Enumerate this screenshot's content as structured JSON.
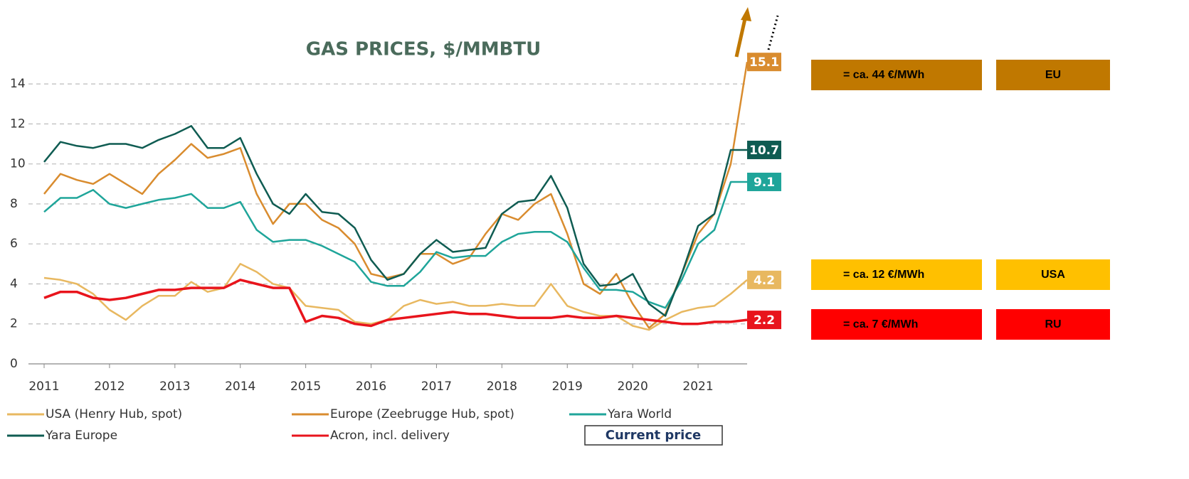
{
  "chart_data": {
    "type": "line",
    "title": "GAS PRICES, $/MMBTU",
    "x": [
      2011,
      2011.25,
      2011.5,
      2011.75,
      2012,
      2012.25,
      2012.5,
      2012.75,
      2013,
      2013.25,
      2013.5,
      2013.75,
      2014,
      2014.25,
      2014.5,
      2014.75,
      2015,
      2015.25,
      2015.5,
      2015.75,
      2016,
      2016.25,
      2016.5,
      2016.75,
      2017,
      2017.25,
      2017.5,
      2017.75,
      2018,
      2018.25,
      2018.5,
      2018.75,
      2019,
      2019.25,
      2019.5,
      2019.75,
      2020,
      2020.25,
      2020.5,
      2020.75,
      2021,
      2021.25,
      2021.5,
      2021.75
    ],
    "xlim": [
      2011,
      2021.75
    ],
    "xticks": [
      2011,
      2012,
      2013,
      2014,
      2015,
      2016,
      2017,
      2018,
      2019,
      2020,
      2021
    ],
    "ylim": [
      0,
      15
    ],
    "yticks": [
      0,
      2,
      4,
      6,
      8,
      10,
      12,
      14
    ],
    "grid": true,
    "series": [
      {
        "name": "USA (Henry Hub, spot)",
        "color": "#e8b860",
        "end_label": 4.2,
        "values": [
          4.3,
          4.2,
          4.0,
          3.5,
          2.7,
          2.2,
          2.9,
          3.4,
          3.4,
          4.1,
          3.6,
          3.8,
          5.0,
          4.6,
          4.0,
          3.8,
          2.9,
          2.8,
          2.7,
          2.1,
          2.0,
          2.2,
          2.9,
          3.2,
          3.0,
          3.1,
          2.9,
          2.9,
          3.0,
          2.9,
          2.9,
          4.0,
          2.9,
          2.6,
          2.4,
          2.4,
          1.9,
          1.7,
          2.2,
          2.6,
          2.8,
          2.9,
          3.5,
          4.2
        ]
      },
      {
        "name": "Europe (Zeebrugge Hub, spot)",
        "color": "#d98c2f",
        "end_label": 15.1,
        "values": [
          8.5,
          9.5,
          9.2,
          9.0,
          9.5,
          9.0,
          8.5,
          9.5,
          10.2,
          11.0,
          10.3,
          10.5,
          10.8,
          8.5,
          7.0,
          8.0,
          8.0,
          7.2,
          6.8,
          6.0,
          4.5,
          4.3,
          4.5,
          5.5,
          5.5,
          5.0,
          5.3,
          6.5,
          7.5,
          7.2,
          8.0,
          8.5,
          6.5,
          4.0,
          3.5,
          4.5,
          3.0,
          1.8,
          2.5,
          4.5,
          6.5,
          7.5,
          10.0,
          15.1
        ]
      },
      {
        "name": "Yara World",
        "color": "#1fa59a",
        "end_label": 9.1,
        "values": [
          7.6,
          8.3,
          8.3,
          8.7,
          8.0,
          7.8,
          8.0,
          8.2,
          8.3,
          8.5,
          7.8,
          7.8,
          8.1,
          6.7,
          6.1,
          6.2,
          6.2,
          5.9,
          5.5,
          5.1,
          4.1,
          3.9,
          3.9,
          4.6,
          5.6,
          5.3,
          5.4,
          5.4,
          6.1,
          6.5,
          6.6,
          6.6,
          6.1,
          4.8,
          3.7,
          3.7,
          3.6,
          3.1,
          2.8,
          4.2,
          6.0,
          6.7,
          9.1,
          9.1
        ]
      },
      {
        "name": "Yara Europe",
        "color": "#0f5c52",
        "end_label": 10.7,
        "values": [
          10.1,
          11.1,
          10.9,
          10.8,
          11.0,
          11.0,
          10.8,
          11.2,
          11.5,
          11.9,
          10.8,
          10.8,
          11.3,
          9.5,
          8.0,
          7.5,
          8.5,
          7.6,
          7.5,
          6.8,
          5.2,
          4.2,
          4.5,
          5.5,
          6.2,
          5.6,
          5.7,
          5.8,
          7.5,
          8.1,
          8.2,
          9.4,
          7.8,
          5.0,
          3.9,
          4.0,
          4.5,
          3.0,
          2.4,
          4.5,
          6.9,
          7.5,
          10.7,
          10.7
        ]
      },
      {
        "name": "Acron, incl. delivery",
        "color": "#e8141c",
        "end_label": 2.2,
        "values": [
          3.3,
          3.6,
          3.6,
          3.3,
          3.2,
          3.3,
          3.5,
          3.7,
          3.7,
          3.8,
          3.8,
          3.8,
          4.2,
          4.0,
          3.8,
          3.8,
          2.1,
          2.4,
          2.3,
          2.0,
          1.9,
          2.2,
          2.3,
          2.4,
          2.5,
          2.6,
          2.5,
          2.5,
          2.4,
          2.3,
          2.3,
          2.3,
          2.4,
          2.3,
          2.3,
          2.4,
          2.3,
          2.2,
          2.1,
          2.0,
          2.0,
          2.1,
          2.1,
          2.2
        ]
      }
    ],
    "legend_note": "Current price"
  },
  "comparisons": [
    {
      "text": "= ca. 44 €/MWh",
      "region": "EU",
      "color": "#c07800"
    },
    {
      "text": "= ca. 12 €/MWh",
      "region": "USA",
      "color": "#ffc000"
    },
    {
      "text": "= ca. 7 €/MWh",
      "region": "RU",
      "color": "#ff0000"
    }
  ]
}
